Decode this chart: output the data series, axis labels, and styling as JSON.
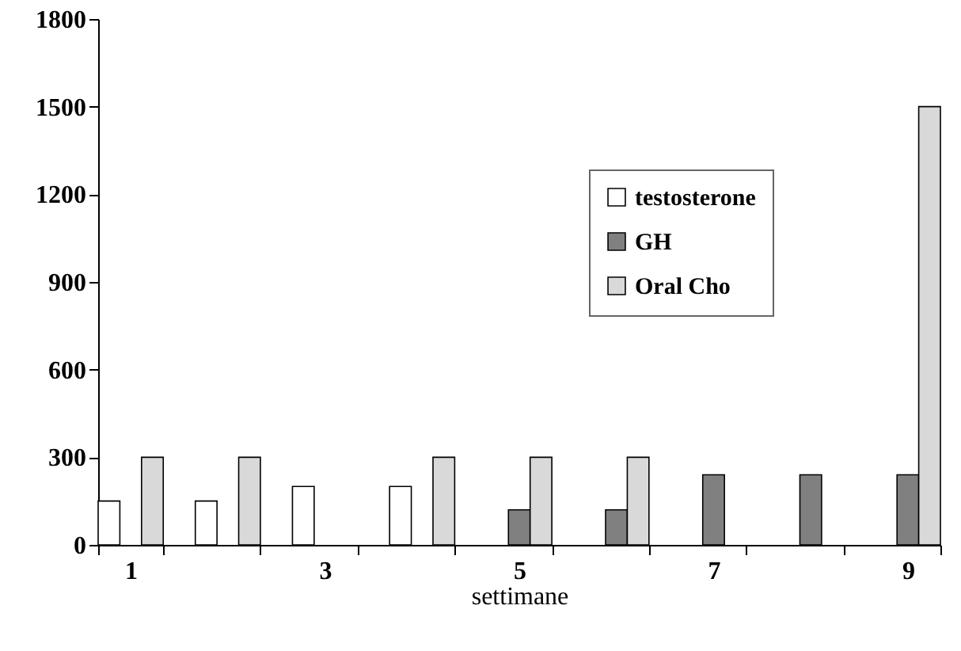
{
  "chart_data": {
    "type": "bar",
    "xlabel": "settimane",
    "categories": [
      "1",
      null,
      "3",
      null,
      "5",
      null,
      "7",
      null,
      "9"
    ],
    "series": [
      {
        "name": "testosterone",
        "color": "#ffffff",
        "values": [
          150,
          150,
          200,
          200,
          null,
          null,
          null,
          null,
          null
        ]
      },
      {
        "name": "GH",
        "color": "#808080",
        "values": [
          null,
          null,
          null,
          null,
          120,
          120,
          240,
          240,
          240
        ]
      },
      {
        "name": "Oral Cho",
        "color": "#d9d9d9",
        "values": [
          300,
          300,
          null,
          300,
          300,
          300,
          null,
          null,
          1500
        ]
      }
    ],
    "ylim": [
      0,
      1800
    ],
    "yticks": [
      0,
      300,
      600,
      900,
      1200,
      1500,
      1800
    ],
    "grid": false,
    "legend": "top right"
  }
}
